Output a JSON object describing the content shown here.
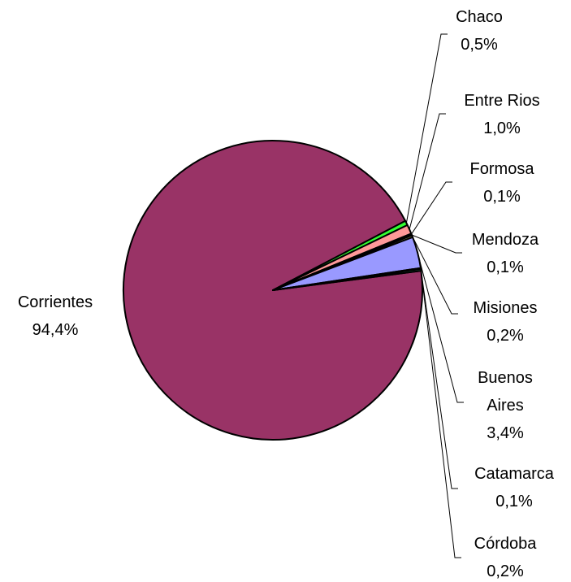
{
  "chart_data": {
    "type": "pie",
    "slices": [
      {
        "label": [
          "Corrientes",
          "94,4%"
        ],
        "value": 94.4,
        "color": "#993366"
      },
      {
        "label": [
          "Chaco",
          "0,5%"
        ],
        "value": 0.5,
        "color": "#33ff33"
      },
      {
        "label": [
          "Entre Rios",
          "1,0%"
        ],
        "value": 1.0,
        "color": "#ff9999"
      },
      {
        "label": [
          "Formosa",
          "0,1%"
        ],
        "value": 0.1,
        "color": "#ffffcc"
      },
      {
        "label": [
          "Mendoza",
          "0,1%"
        ],
        "value": 0.1,
        "color": "#ccffff"
      },
      {
        "label": [
          "Misiones",
          "0,2%"
        ],
        "value": 0.2,
        "color": "#ffff99"
      },
      {
        "label": [
          "Buenos",
          "Aires",
          "3,4%"
        ],
        "value": 3.4,
        "color": "#9999ff"
      },
      {
        "label": [
          "Catamarca",
          "0,1%"
        ],
        "value": 0.1,
        "color": "#cc99ff"
      },
      {
        "label": [
          "Córdoba",
          "0,2%"
        ],
        "value": 0.2,
        "color": "#339966"
      }
    ]
  }
}
